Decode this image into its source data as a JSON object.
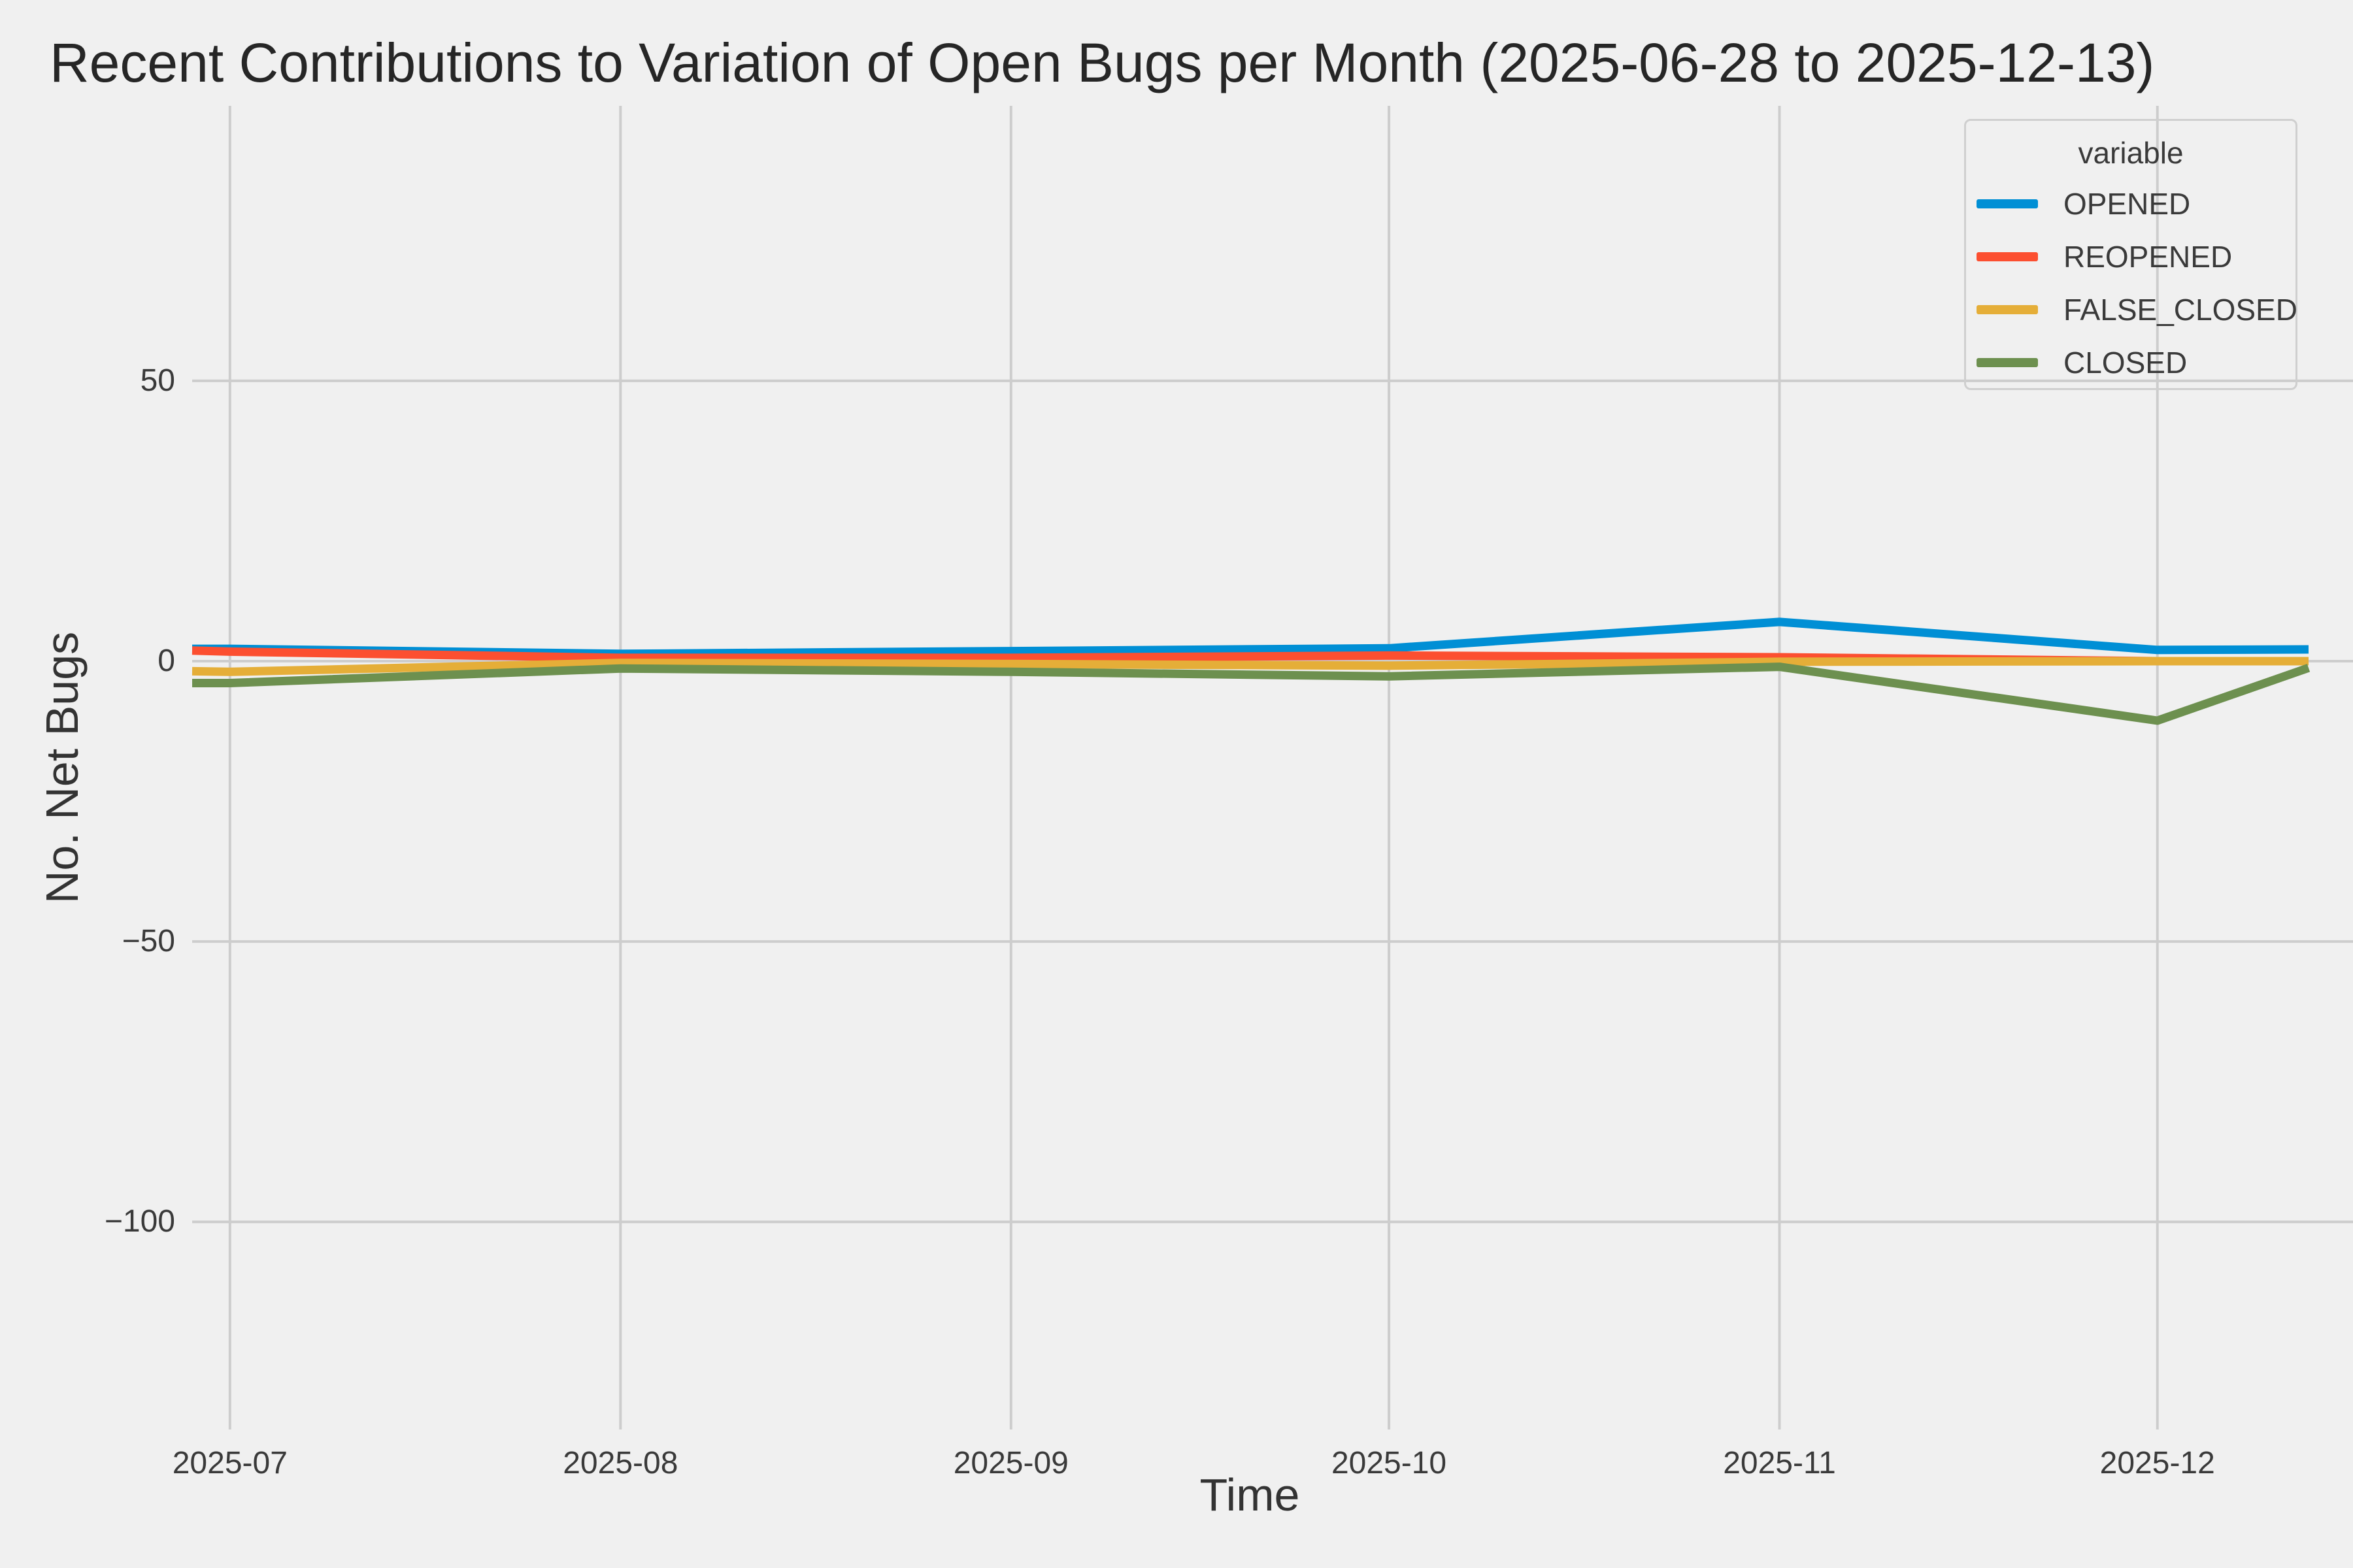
{
  "title": "Recent Contributions to Variation of Open Bugs per Month (2025-06-28 to 2025-12-13)",
  "colors": {
    "background": "#f0f0f0",
    "grid": "#cdcdcd",
    "tick_text": "#3a3a3a",
    "title_text": "#262626"
  },
  "axes": {
    "x_label": "Time",
    "y_label": "No. Net Bugs",
    "x_ticks": [
      {
        "label": "2025-07",
        "date": "2025-07-01"
      },
      {
        "label": "2025-08",
        "date": "2025-08-01"
      },
      {
        "label": "2025-09",
        "date": "2025-09-01"
      },
      {
        "label": "2025-10",
        "date": "2025-10-01"
      },
      {
        "label": "2025-11",
        "date": "2025-11-01"
      },
      {
        "label": "2025-12",
        "date": "2025-12-01"
      }
    ],
    "y_ticks": [
      {
        "label": "50",
        "value": 50
      },
      {
        "label": "0",
        "value": 0
      },
      {
        "label": "−50",
        "value": -50
      },
      {
        "label": "−100",
        "value": -100
      }
    ]
  },
  "legend": {
    "title": "variable",
    "entries": [
      {
        "label": "OPENED",
        "color": "#008fd5"
      },
      {
        "label": "REOPENED",
        "color": "#fc4f30"
      },
      {
        "label": "FALSE_CLOSED",
        "color": "#e5ae38"
      },
      {
        "label": "CLOSED",
        "color": "#6d904f"
      }
    ]
  },
  "chart_data": {
    "type": "line",
    "title": "Recent Contributions to Variation of Open Bugs per Month (2025-06-28 to 2025-12-13)",
    "xlabel": "Time",
    "ylabel": "No. Net Bugs",
    "x": [
      "2025-06-28",
      "2025-07-01",
      "2025-08-01",
      "2025-09-01",
      "2025-10-01",
      "2025-11-01",
      "2025-12-01",
      "2025-12-13"
    ],
    "series": [
      {
        "name": "OPENED",
        "color": "#008fd5",
        "values": [
          2.2,
          2.2,
          1.3,
          1.8,
          2.3,
          7.0,
          2.0,
          2.1
        ]
      },
      {
        "name": "REOPENED",
        "color": "#fc4f30",
        "values": [
          1.9,
          1.7,
          0.6,
          0.6,
          1.0,
          0.7,
          0.0,
          0.0
        ]
      },
      {
        "name": "FALSE_CLOSED",
        "color": "#e5ae38",
        "values": [
          -1.8,
          -1.9,
          -0.3,
          -0.5,
          -0.8,
          -0.1,
          0.0,
          0.0
        ]
      },
      {
        "name": "CLOSED",
        "color": "#6d904f",
        "values": [
          -3.9,
          -3.9,
          -1.3,
          -1.9,
          -2.7,
          -1.0,
          -10.6,
          -1.2
        ]
      }
    ],
    "ylim": [
      -137,
      96
    ],
    "grid": true,
    "legend_title": "variable",
    "legend_position": "upper right"
  }
}
